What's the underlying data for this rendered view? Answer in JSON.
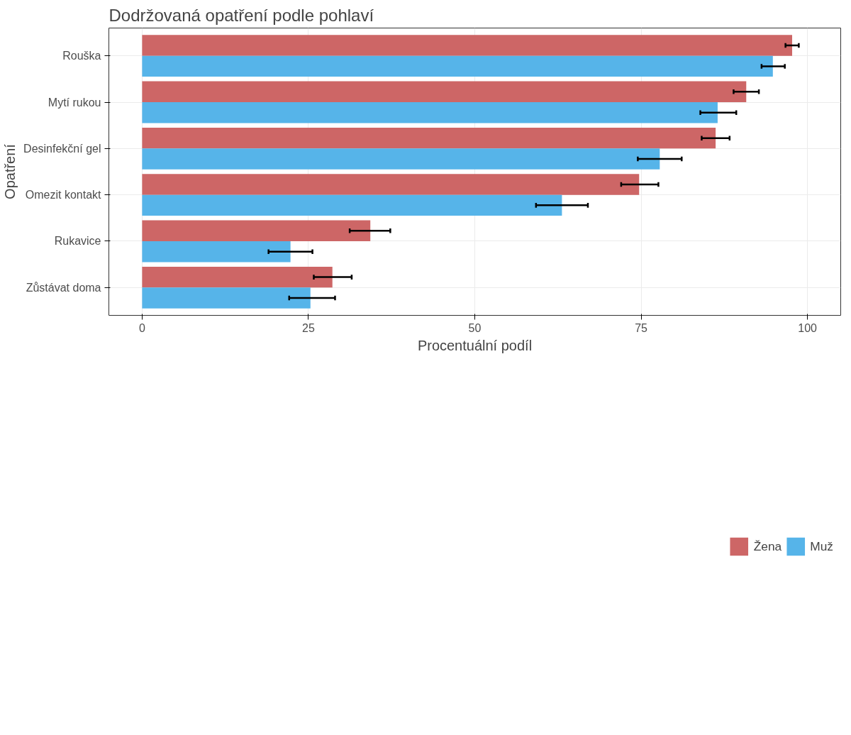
{
  "chart_data": {
    "type": "bar",
    "orientation": "horizontal",
    "title": "Dodržovaná opatření podle pohlaví",
    "xlabel": "Procentuální podíl",
    "ylabel": "Opatření",
    "categories": [
      "Rouška",
      "Mytí rukou",
      "Desinfekční gel",
      "Omezit kontakt",
      "Rukavice",
      "Zůstávat doma"
    ],
    "series": [
      {
        "name": "Žena",
        "color": "#cd6666",
        "values": [
          97.7,
          90.8,
          86.2,
          74.7,
          34.3,
          28.6
        ],
        "errors": [
          [
            96.7,
            98.7
          ],
          [
            88.9,
            92.7
          ],
          [
            84.1,
            88.3
          ],
          [
            72.0,
            77.6
          ],
          [
            31.2,
            37.3
          ],
          [
            25.8,
            31.5
          ]
        ]
      },
      {
        "name": "Muž",
        "color": "#56b4e9",
        "values": [
          94.8,
          86.5,
          77.8,
          63.1,
          22.3,
          25.3
        ],
        "errors": [
          [
            93.1,
            96.6
          ],
          [
            83.9,
            89.3
          ],
          [
            74.5,
            81.1
          ],
          [
            59.2,
            67.0
          ],
          [
            19.0,
            25.6
          ],
          [
            22.1,
            29.0
          ]
        ]
      }
    ],
    "xlim": [
      -5,
      105
    ],
    "xticks": [
      0,
      25,
      50,
      75,
      100
    ],
    "grid": true,
    "legend": "bottom"
  }
}
